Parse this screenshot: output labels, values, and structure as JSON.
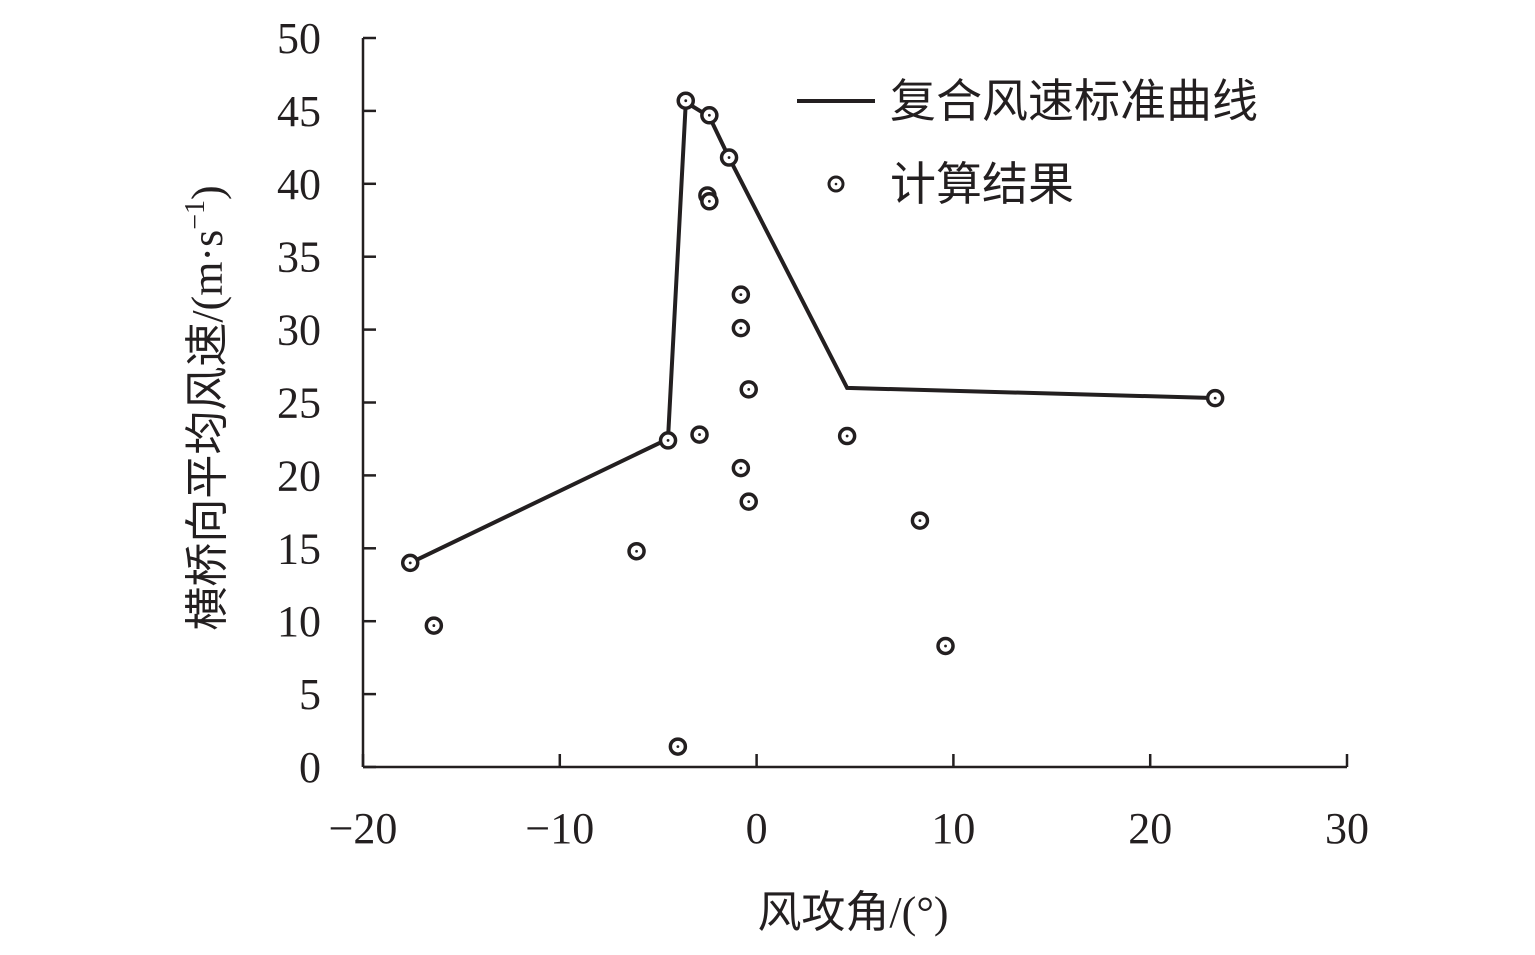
{
  "chart_data": {
    "type": "scatter",
    "xlabel": "风攻角/(°)",
    "ylabel": "横桥向平均风速/(m·s",
    "ylabel_superscript": "−1",
    "ylabel_close": ")",
    "xlim": [
      -20,
      30
    ],
    "ylim": [
      0,
      50
    ],
    "x_ticks": [
      -20,
      -10,
      0,
      10,
      20,
      30
    ],
    "x_tick_labels": [
      "−20",
      "−10",
      "0",
      "10",
      "20",
      "30"
    ],
    "y_ticks": [
      0,
      5,
      10,
      15,
      20,
      25,
      30,
      35,
      40,
      45,
      50
    ],
    "y_tick_labels": [
      "0",
      "5",
      "10",
      "15",
      "20",
      "25",
      "30",
      "35",
      "40",
      "45",
      "50"
    ],
    "grid": false,
    "legend_position": "top-right",
    "series": [
      {
        "name": "复合风速标准曲线",
        "kind": "line",
        "color": "#231f20",
        "points": [
          {
            "x": -17.6,
            "y": 14.0
          },
          {
            "x": -4.5,
            "y": 22.5
          },
          {
            "x": -3.6,
            "y": 45.6
          },
          {
            "x": -2.4,
            "y": 44.6
          },
          {
            "x": -1.4,
            "y": 41.8
          },
          {
            "x": 4.6,
            "y": 26.0
          },
          {
            "x": 23.4,
            "y": 25.3
          }
        ]
      },
      {
        "name": "计算结果",
        "kind": "scatter",
        "color": "#231f20",
        "points": [
          {
            "x": -17.6,
            "y": 14.0
          },
          {
            "x": -16.4,
            "y": 9.7
          },
          {
            "x": -6.1,
            "y": 14.8
          },
          {
            "x": -4.5,
            "y": 22.4
          },
          {
            "x": -4.0,
            "y": 1.4
          },
          {
            "x": -3.6,
            "y": 45.7
          },
          {
            "x": -2.9,
            "y": 22.8
          },
          {
            "x": -2.5,
            "y": 39.2
          },
          {
            "x": -2.4,
            "y": 38.8
          },
          {
            "x": -2.4,
            "y": 44.7
          },
          {
            "x": -1.4,
            "y": 41.8
          },
          {
            "x": -0.8,
            "y": 32.4
          },
          {
            "x": -0.8,
            "y": 30.1
          },
          {
            "x": -0.8,
            "y": 20.5
          },
          {
            "x": -0.4,
            "y": 25.9
          },
          {
            "x": -0.4,
            "y": 18.2
          },
          {
            "x": 4.6,
            "y": 22.7
          },
          {
            "x": 8.3,
            "y": 16.9
          },
          {
            "x": 9.6,
            "y": 8.3
          },
          {
            "x": 23.3,
            "y": 25.3
          }
        ]
      }
    ]
  }
}
